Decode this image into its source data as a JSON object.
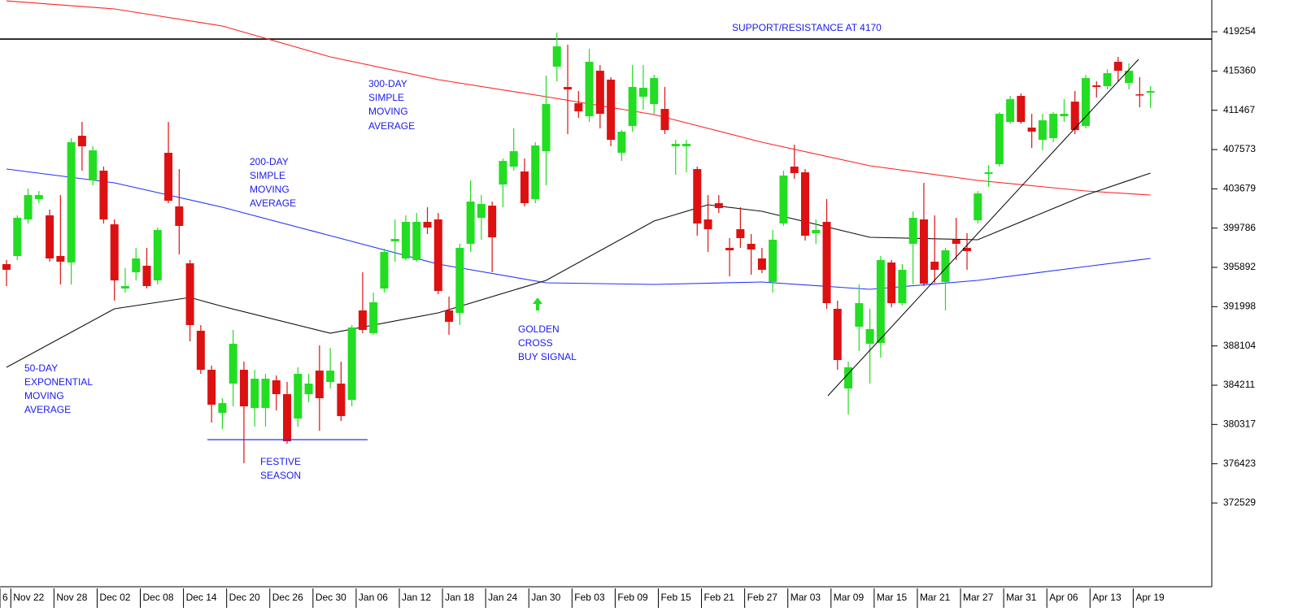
{
  "chart_data": {
    "type": "candlestick",
    "up_color": "#22dd22",
    "down_color": "#dd1111",
    "ylim": [
      364230,
      422400
    ],
    "yticks": [
      419254,
      415360,
      411467,
      407573,
      403679,
      399786,
      395892,
      391998,
      388104,
      384211,
      380317,
      376423,
      372529
    ],
    "categories": [
      "6",
      "Nov 22",
      null,
      null,
      null,
      "Nov 28",
      null,
      null,
      null,
      "Dec 02",
      null,
      null,
      null,
      "Dec 08",
      null,
      null,
      null,
      "Dec 14",
      null,
      null,
      null,
      "Dec 20",
      null,
      null,
      null,
      "Dec 26",
      null,
      null,
      null,
      "Dec 30",
      null,
      null,
      null,
      "Jan 06",
      null,
      null,
      null,
      "Jan 12",
      null,
      null,
      null,
      "Jan 18",
      null,
      null,
      null,
      "Jan 24",
      null,
      null,
      null,
      "Jan 30",
      null,
      null,
      null,
      "Feb 03",
      null,
      null,
      null,
      "Feb 09",
      null,
      null,
      null,
      "Feb 15",
      null,
      null,
      null,
      "Feb 21",
      null,
      null,
      null,
      "Feb 27",
      null,
      null,
      null,
      "Mar 03",
      null,
      null,
      null,
      "Mar 09",
      null,
      null,
      null,
      "Mar 15",
      null,
      null,
      null,
      "Mar 21",
      null,
      null,
      null,
      "Mar 27",
      null,
      null,
      null,
      "Mar 31",
      null,
      null,
      null,
      "Apr 06",
      null,
      null,
      null,
      "Apr 13",
      null,
      null,
      null,
      "Apr 19",
      null
    ],
    "open": [
      396214,
      397020,
      400645,
      402659,
      401048,
      397020,
      396375,
      408942,
      404512,
      405478,
      400161,
      393797,
      395408,
      396053,
      394603,
      407251,
      401934,
      396295,
      389608,
      385741,
      381472,
      384372,
      385741,
      381955,
      381955,
      384694,
      383324,
      380908,
      383324,
      385661,
      384533,
      384372,
      382760,
      391622,
      389366,
      393797,
      398470,
      396778,
      396617,
      400403,
      400645,
      391622,
      391380,
      398228,
      400806,
      402014,
      404109,
      405881,
      405398,
      402659,
      407412,
      415790,
      413776,
      412165,
      410876,
      415387,
      414501,
      407251,
      409909,
      412809,
      412084,
      411601,
      407895,
      407895,
      405640,
      400645,
      402256,
      397825,
      399678,
      398228,
      396778,
      394442,
      400242,
      405881,
      405317,
      399275,
      400403,
      391783,
      383888,
      390011,
      388319,
      388400,
      396375,
      392347,
      398228,
      400645,
      396456,
      394442,
      398631,
      397825,
      400564,
      405156,
      406123,
      410312,
      412890,
      409748,
      408540,
      408701,
      410876,
      412326,
      409909,
      413937,
      413857,
      416273,
      414179,
      413051,
      413212
    ],
    "high": [
      396617,
      401048,
      403706,
      403464,
      401612,
      403062,
      408701,
      410312,
      407895,
      405881,
      400645,
      395811,
      397825,
      397825,
      399839,
      410312,
      405640,
      396617,
      390172,
      386144,
      382922,
      389689,
      386547,
      385741,
      385338,
      385177,
      384533,
      385983,
      385338,
      388158,
      387916,
      386547,
      390172,
      395408,
      393394,
      397745,
      400645,
      401048,
      401289,
      401853,
      401289,
      392992,
      398228,
      404512,
      403062,
      402417,
      406687,
      409668,
      406687,
      408298,
      414904,
      419174,
      417965,
      413373,
      417562,
      415951,
      414743,
      409506,
      415951,
      415951,
      414984,
      413776,
      408540,
      408540,
      405881,
      403062,
      403062,
      398792,
      401853,
      399195,
      397825,
      399598,
      405478,
      408056,
      405640,
      400645,
      402659,
      392589,
      386547,
      394200,
      391783,
      397020,
      396617,
      396214,
      401450,
      404270,
      401048,
      397825,
      400806,
      399275,
      403464,
      406042,
      411279,
      412890,
      413132,
      411118,
      411118,
      411279,
      412568,
      413373,
      414984,
      414340,
      415548,
      416757,
      416112,
      414743,
      413857
    ],
    "low": [
      394039,
      396617,
      400242,
      402256,
      396456,
      394200,
      394200,
      405478,
      404028,
      400242,
      392589,
      393394,
      394603,
      393797,
      394200,
      402256,
      397181,
      388561,
      385338,
      380505,
      379860,
      382116,
      376477,
      380102,
      380102,
      381713,
      378410,
      380102,
      382519,
      379699,
      383888,
      380666,
      382116,
      389366,
      389205,
      393394,
      396456,
      396617,
      396456,
      399195,
      393233,
      389205,
      390172,
      397422,
      398631,
      395408,
      401853,
      405478,
      401934,
      402256,
      404028,
      414340,
      409104,
      410715,
      410312,
      409668,
      407895,
      406445,
      409345,
      411520,
      411118,
      409104,
      405076,
      405317,
      399034,
      397422,
      401289,
      395006,
      397825,
      395167,
      395328,
      393394,
      400000,
      404673,
      398550,
      398228,
      391783,
      385741,
      381310,
      387594,
      384372,
      386950,
      391944,
      392105,
      394200,
      394039,
      394361,
      391622,
      396617,
      395650,
      400242,
      403867,
      405881,
      410151,
      410151,
      407734,
      407492,
      408298,
      410312,
      409104,
      409668,
      412729,
      413534,
      414340,
      413534,
      411762,
      411682
    ],
    "close": [
      395650,
      400806,
      403062,
      403062,
      396778,
      396456,
      408298,
      407895,
      407492,
      400645,
      394603,
      394039,
      396778,
      394039,
      399598,
      402498,
      400000,
      390172,
      385741,
      382277,
      382438,
      388319,
      382116,
      384855,
      384855,
      383324,
      378652,
      385338,
      384372,
      382922,
      385661,
      381149,
      389930,
      389689,
      392428,
      397422,
      398711,
      400403,
      400403,
      399839,
      393556,
      390494,
      397825,
      402417,
      402175,
      398872,
      406445,
      407412,
      402256,
      407976,
      412084,
      417804,
      413534,
      411359,
      416273,
      411118,
      408540,
      409345,
      413776,
      413696,
      414662,
      409506,
      408137,
      408137,
      400242,
      399678,
      401773,
      397584,
      398792,
      397664,
      395650,
      398631,
      404995,
      405237,
      399034,
      399598,
      392347,
      386708,
      385983,
      392347,
      389769,
      396617,
      392347,
      395650,
      400806,
      394281,
      395650,
      397584,
      398228,
      397503,
      403223,
      405317,
      411118,
      412568,
      410312,
      409345,
      410473,
      411118,
      411118,
      409506,
      414662,
      413776,
      415146,
      415387,
      415387,
      412970,
      413373
    ],
    "lines": [
      {
        "color": "#ff2222",
        "x": [
          0,
          10,
          20,
          30,
          40,
          50,
          60,
          70,
          80,
          90,
          100,
          106
        ],
        "values": [
          422315,
          421510,
          419818,
          416757,
          414501,
          412809,
          411037,
          408298,
          405962,
          404512,
          403464,
          403062
        ]
      },
      {
        "color": "#2233ff",
        "x": [
          0,
          10,
          20,
          30,
          40,
          50,
          60,
          70,
          80,
          90,
          100,
          106
        ],
        "values": [
          405640,
          404270,
          401853,
          399034,
          396214,
          394361,
          394200,
          394442,
          393717,
          394603,
          395972,
          396778
        ]
      },
      {
        "color": "#111111",
        "x": [
          0,
          10,
          17,
          20,
          30,
          40,
          50,
          60,
          65,
          70,
          80,
          90,
          100,
          106
        ],
        "values": [
          385983,
          391783,
          392911,
          392025,
          389366,
          391380,
          394603,
          400484,
          402095,
          401450,
          398872,
          398631,
          403062,
          405237
        ]
      }
    ],
    "reference_lines": [
      {
        "value": 418530,
        "color": "#000000"
      }
    ],
    "annotations": [
      [
        "SUPPORT/RESISTANCE AT 4170"
      ],
      [
        "300-DAY",
        "SIMPLE",
        "MOVING",
        "AVERAGE"
      ],
      [
        "200-DAY",
        "SIMPLE",
        "MOVING",
        "AVERAGE"
      ],
      [
        "50-DAY",
        "EXPONENTIAL",
        "MOVING",
        "AVERAGE"
      ],
      [
        "FESTIVE",
        "SEASON"
      ],
      [
        "GOLDEN",
        "CROSS",
        "BUY SIGNAL"
      ]
    ]
  }
}
